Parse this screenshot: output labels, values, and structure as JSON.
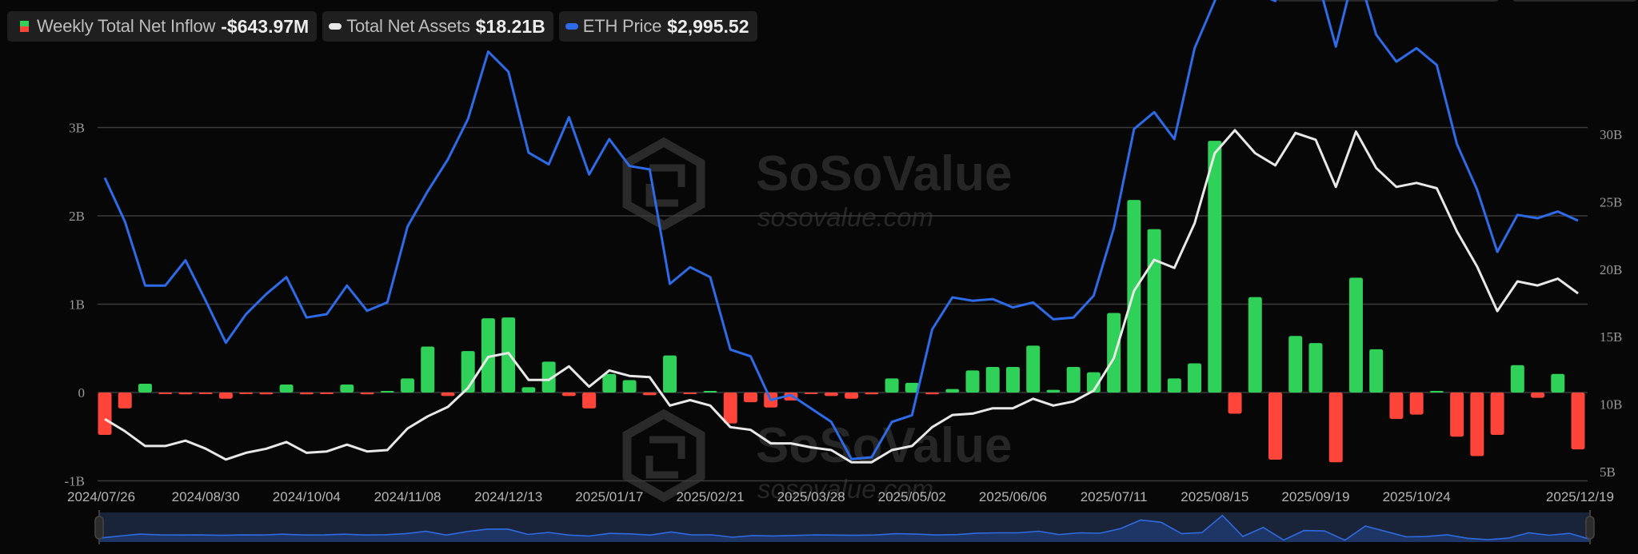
{
  "legend": {
    "inflow": {
      "label": "Weekly Total Net Inflow",
      "value": "-$643.97M"
    },
    "assets": {
      "label": "Total Net Assets",
      "value": "$18.21B"
    },
    "eth": {
      "label": "ETH Price",
      "value": "$2,995.52"
    }
  },
  "watermark": {
    "brand": "SoSoValue",
    "url": "sosovalue.com"
  },
  "colors": {
    "positive": "#30d158",
    "negative": "#ff453a",
    "assets_line": "#e8e8e8",
    "eth_line": "#2d6be8",
    "grid": "#3a3a3a",
    "background": "#070707"
  },
  "chart_data": {
    "type": "bar",
    "title": "",
    "legend_position": "top-left",
    "grid": true,
    "x_tick_labels": [
      "2024/07/26",
      "2024/08/30",
      "2024/10/04",
      "2024/11/08",
      "2024/12/13",
      "2025/01/17",
      "2025/02/21",
      "2025/03/28",
      "2025/05/02",
      "2025/06/06",
      "2025/07/11",
      "2025/08/15",
      "2025/09/19",
      "2025/10/24",
      "2025/12/19"
    ],
    "left_axis": {
      "label": "Weekly Total Net Inflow",
      "ticks": [
        "3B",
        "2B",
        "1B",
        "0",
        "-1B"
      ],
      "range": [
        -1000000000,
        3000000000
      ]
    },
    "right_axis": {
      "label": "Total Net Assets",
      "ticks": [
        "30B",
        "25B",
        "20B",
        "15B",
        "10B",
        "5B"
      ],
      "range": [
        5000000000,
        30000000000
      ]
    },
    "categories": [
      "2024/07/26",
      "2024/08/02",
      "2024/08/09",
      "2024/08/16",
      "2024/08/23",
      "2024/08/30",
      "2024/09/06",
      "2024/09/13",
      "2024/09/20",
      "2024/09/27",
      "2024/10/04",
      "2024/10/11",
      "2024/10/18",
      "2024/10/25",
      "2024/11/01",
      "2024/11/08",
      "2024/11/15",
      "2024/11/22",
      "2024/11/29",
      "2024/12/06",
      "2024/12/13",
      "2024/12/20",
      "2024/12/27",
      "2025/01/03",
      "2025/01/10",
      "2025/01/17",
      "2025/01/24",
      "2025/01/31",
      "2025/02/07",
      "2025/02/14",
      "2025/02/21",
      "2025/02/28",
      "2025/03/07",
      "2025/03/14",
      "2025/03/21",
      "2025/03/28",
      "2025/04/04",
      "2025/04/11",
      "2025/04/18",
      "2025/04/25",
      "2025/05/02",
      "2025/05/09",
      "2025/05/16",
      "2025/05/23",
      "2025/05/30",
      "2025/06/06",
      "2025/06/13",
      "2025/06/20",
      "2025/06/27",
      "2025/07/04",
      "2025/07/11",
      "2025/07/18",
      "2025/07/25",
      "2025/08/01",
      "2025/08/08",
      "2025/08/15",
      "2025/08/22",
      "2025/08/29",
      "2025/09/05",
      "2025/09/12",
      "2025/09/19",
      "2025/09/26",
      "2025/10/03",
      "2025/10/10",
      "2025/10/17",
      "2025/10/24",
      "2025/10/31",
      "2025/11/07",
      "2025/11/14",
      "2025/11/21",
      "2025/11/28",
      "2025/12/05",
      "2025/12/12",
      "2025/12/19"
    ],
    "series": [
      {
        "name": "Weekly Total Net Inflow",
        "type": "bar",
        "unit": "USD millions",
        "axis": "left",
        "values": [
          -480,
          -180,
          100,
          -10,
          -20,
          -10,
          -70,
          -10,
          -20,
          90,
          -20,
          -10,
          90,
          -20,
          10,
          160,
          520,
          -40,
          470,
          840,
          850,
          60,
          350,
          -40,
          -180,
          210,
          140,
          -30,
          420,
          -10,
          0,
          -350,
          -110,
          -170,
          -90,
          -10,
          -40,
          -70,
          -20,
          160,
          110,
          -20,
          40,
          250,
          290,
          290,
          530,
          30,
          290,
          230,
          900,
          2180,
          1850,
          160,
          330,
          2850,
          -240,
          1080,
          -760,
          640,
          560,
          -790,
          1300,
          490,
          -300,
          -250,
          10,
          -500,
          -720,
          -480,
          310,
          -60,
          210,
          -643.97
        ]
      },
      {
        "name": "Total Net Assets",
        "type": "line",
        "unit": "USD billions",
        "axis": "right",
        "values": [
          8.9,
          8.0,
          6.9,
          6.9,
          7.3,
          6.7,
          5.9,
          6.4,
          6.7,
          7.2,
          6.4,
          6.5,
          7.0,
          6.5,
          6.6,
          8.2,
          9.1,
          9.8,
          11.2,
          13.5,
          13.8,
          11.8,
          11.8,
          12.8,
          11.3,
          12.5,
          12.1,
          12.0,
          9.9,
          10.3,
          9.9,
          8.3,
          8.1,
          7.1,
          7.1,
          6.8,
          6.6,
          5.7,
          5.7,
          6.6,
          6.9,
          8.3,
          9.2,
          9.3,
          9.7,
          9.7,
          10.4,
          9.9,
          10.2,
          11.0,
          13.4,
          18.4,
          20.7,
          20.1,
          23.4,
          28.6,
          30.3,
          28.6,
          27.7,
          30.1,
          29.6,
          26.1,
          30.2,
          27.5,
          26.1,
          26.4,
          26.0,
          22.8,
          20.2,
          16.9,
          19.1,
          18.8,
          19.3,
          18.21
        ]
      },
      {
        "name": "ETH Price",
        "type": "line",
        "unit": "USD",
        "axis": "hidden",
        "values": [
          3250,
          2990,
          2610,
          2610,
          2760,
          2520,
          2270,
          2440,
          2560,
          2660,
          2420,
          2440,
          2610,
          2460,
          2510,
          2960,
          3170,
          3360,
          3600,
          4000,
          3880,
          3400,
          3330,
          3610,
          3270,
          3480,
          3320,
          3300,
          2620,
          2720,
          2660,
          2230,
          2190,
          1930,
          1960,
          1880,
          1800,
          1580,
          1590,
          1800,
          1840,
          2350,
          2540,
          2520,
          2530,
          2480,
          2510,
          2410,
          2420,
          2550,
          2950,
          3540,
          3640,
          3480,
          4020,
          4300,
          4630,
          4350,
          4300,
          4620,
          4470,
          4030,
          4510,
          4100,
          3940,
          4020,
          3920,
          3450,
          3180,
          2810,
          3030,
          3010,
          3050,
          2995.52
        ]
      }
    ]
  }
}
